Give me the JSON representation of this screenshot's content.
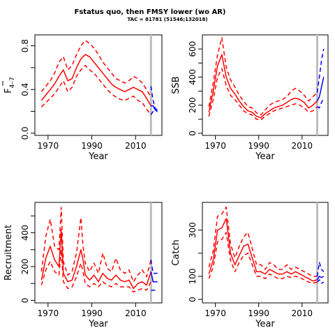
{
  "figure": {
    "title": "Fstatus quo, then FMSY lower (wo AR)",
    "subtitle": "TAC = 81781 (51546;132018)"
  },
  "colors": {
    "historical": "#ff0000",
    "projection": "#0000ff",
    "marker": "#bebebe"
  },
  "chart_data": [
    {
      "id": "fbar",
      "type": "line",
      "xlabel": "Year",
      "ylabel": "F̅ 4–7",
      "ylabel_main": "F",
      "ylabel_sub": "4–7",
      "xlim": [
        1964,
        2022
      ],
      "ylim": [
        -0.02,
        0.9
      ],
      "xticks": [
        1970,
        1990,
        2010
      ],
      "xtick_labels": [
        "1970",
        "1990",
        "2010"
      ],
      "yticks": [
        0.0,
        0.4,
        0.8
      ],
      "ytick_labels": [
        "0.0",
        "0.4",
        "0.8"
      ],
      "ytick_minor": [
        0.2,
        0.6
      ],
      "vline": 2017,
      "historical": {
        "x": [
          1967,
          1969,
          1971,
          1973,
          1975,
          1977,
          1979,
          1981,
          1983,
          1985,
          1987,
          1989,
          1991,
          1993,
          1995,
          1997,
          1999,
          2001,
          2003,
          2005,
          2007,
          2009,
          2011,
          2013,
          2015,
          2017
        ],
        "median": [
          0.3,
          0.35,
          0.4,
          0.45,
          0.52,
          0.58,
          0.48,
          0.5,
          0.6,
          0.68,
          0.72,
          0.7,
          0.65,
          0.6,
          0.55,
          0.5,
          0.45,
          0.42,
          0.4,
          0.38,
          0.4,
          0.42,
          0.4,
          0.38,
          0.32,
          0.25
        ],
        "lower": [
          0.24,
          0.28,
          0.32,
          0.36,
          0.42,
          0.48,
          0.38,
          0.42,
          0.52,
          0.58,
          0.62,
          0.58,
          0.55,
          0.5,
          0.45,
          0.4,
          0.36,
          0.33,
          0.31,
          0.3,
          0.32,
          0.34,
          0.3,
          0.28,
          0.22,
          0.17
        ],
        "upper": [
          0.38,
          0.43,
          0.48,
          0.55,
          0.65,
          0.7,
          0.58,
          0.62,
          0.72,
          0.8,
          0.85,
          0.82,
          0.78,
          0.72,
          0.65,
          0.6,
          0.55,
          0.5,
          0.48,
          0.46,
          0.48,
          0.52,
          0.5,
          0.46,
          0.4,
          0.33
        ]
      },
      "projection": {
        "x": [
          2017,
          2018,
          2019,
          2020
        ],
        "median": [
          0.25,
          0.25,
          0.21,
          0.21
        ],
        "lower": [
          0.17,
          0.2,
          0.2,
          0.2
        ],
        "upper": [
          0.43,
          0.3,
          0.22,
          0.22
        ]
      }
    },
    {
      "id": "ssb",
      "type": "line",
      "xlabel": "Year",
      "ylabel": "SSB",
      "xlim": [
        1964,
        2022
      ],
      "ylim": [
        -15,
        700
      ],
      "xticks": [
        1970,
        1990,
        2010
      ],
      "xtick_labels": [
        "1970",
        "1990",
        "2010"
      ],
      "yticks": [
        0,
        200,
        400,
        600
      ],
      "ytick_labels": [
        "0",
        "200",
        "400",
        "600"
      ],
      "ytick_minor": [
        100,
        300,
        500
      ],
      "vline": 2017,
      "historical": {
        "x": [
          1967,
          1969,
          1971,
          1973,
          1975,
          1977,
          1979,
          1981,
          1983,
          1985,
          1987,
          1989,
          1991,
          1993,
          1995,
          1997,
          1999,
          2001,
          2003,
          2005,
          2007,
          2009,
          2011,
          2013,
          2015,
          2017
        ],
        "median": [
          150,
          300,
          480,
          560,
          400,
          320,
          280,
          230,
          190,
          160,
          150,
          120,
          110,
          140,
          160,
          180,
          190,
          200,
          220,
          240,
          250,
          240,
          220,
          180,
          200,
          230
        ],
        "lower": [
          120,
          240,
          400,
          460,
          340,
          270,
          240,
          200,
          160,
          140,
          130,
          100,
          95,
          120,
          140,
          160,
          170,
          180,
          190,
          200,
          210,
          200,
          180,
          150,
          160,
          190
        ],
        "upper": [
          190,
          360,
          560,
          680,
          470,
          380,
          330,
          270,
          230,
          190,
          180,
          145,
          130,
          165,
          200,
          220,
          230,
          240,
          260,
          300,
          320,
          300,
          270,
          230,
          260,
          290
        ]
      },
      "projection": {
        "x": [
          2017,
          2018,
          2019,
          2020
        ],
        "median": [
          230,
          260,
          330,
          400
        ],
        "lower": [
          190,
          180,
          220,
          250
        ],
        "upper": [
          290,
          400,
          520,
          600
        ]
      }
    },
    {
      "id": "recruitment",
      "type": "line",
      "xlabel": "Year",
      "ylabel": "Recruitment",
      "xlim": [
        1964,
        2022
      ],
      "ylim": [
        -15,
        580
      ],
      "xticks": [
        1970,
        1990,
        2010
      ],
      "xtick_labels": [
        "1970",
        "1990",
        "2010"
      ],
      "yticks": [
        0,
        200,
        400
      ],
      "ytick_labels": [
        "0",
        "200",
        "400"
      ],
      "ytick_minor": [
        100,
        300,
        500
      ],
      "vline": 2017,
      "historical": {
        "x": [
          1967,
          1969,
          1971,
          1973,
          1975,
          1976,
          1977,
          1979,
          1981,
          1983,
          1985,
          1986,
          1987,
          1989,
          1991,
          1993,
          1995,
          1997,
          1999,
          2001,
          2003,
          2005,
          2007,
          2009,
          2011,
          2013,
          2015,
          2017
        ],
        "median": [
          120,
          250,
          320,
          240,
          200,
          420,
          160,
          110,
          120,
          200,
          300,
          240,
          150,
          120,
          150,
          110,
          160,
          130,
          120,
          150,
          120,
          110,
          120,
          70,
          100,
          110,
          90,
          170
        ],
        "lower": [
          90,
          180,
          230,
          170,
          150,
          300,
          110,
          70,
          80,
          140,
          220,
          170,
          100,
          80,
          100,
          80,
          110,
          90,
          80,
          100,
          80,
          80,
          80,
          50,
          60,
          70,
          60,
          110
        ],
        "upper": [
          170,
          380,
          480,
          320,
          300,
          550,
          230,
          150,
          170,
          280,
          490,
          320,
          220,
          170,
          220,
          160,
          280,
          190,
          170,
          250,
          180,
          160,
          180,
          110,
          150,
          180,
          140,
          240
        ]
      },
      "projection": {
        "x": [
          2017,
          2018,
          2019,
          2020
        ],
        "median": [
          170,
          110,
          110,
          110
        ],
        "lower": [
          60,
          60,
          60,
          60
        ],
        "upper": [
          240,
          160,
          160,
          160
        ]
      }
    },
    {
      "id": "catch",
      "type": "line",
      "xlabel": "Year",
      "ylabel": "Catch",
      "xlim": [
        1964,
        2022
      ],
      "ylim": [
        -15,
        420
      ],
      "xticks": [
        1970,
        1990,
        2010
      ],
      "xtick_labels": [
        "1970",
        "1990",
        "2010"
      ],
      "yticks": [
        0,
        100,
        300
      ],
      "ytick_labels": [
        "0",
        "100",
        "300"
      ],
      "ytick_minor": [
        200
      ],
      "vline": 2017,
      "historical": {
        "x": [
          1967,
          1969,
          1971,
          1973,
          1975,
          1977,
          1979,
          1981,
          1983,
          1985,
          1987,
          1989,
          1991,
          1993,
          1995,
          1997,
          1999,
          2001,
          2003,
          2005,
          2007,
          2009,
          2011,
          2013,
          2015,
          2017
        ],
        "median": [
          110,
          170,
          300,
          310,
          350,
          200,
          150,
          190,
          230,
          240,
          180,
          120,
          120,
          110,
          130,
          120,
          110,
          110,
          120,
          110,
          120,
          110,
          100,
          90,
          80,
          85
        ],
        "lower": [
          90,
          140,
          250,
          260,
          290,
          170,
          120,
          160,
          190,
          200,
          150,
          100,
          100,
          90,
          110,
          100,
          90,
          90,
          100,
          95,
          100,
          95,
          85,
          75,
          70,
          75
        ],
        "upper": [
          140,
          210,
          360,
          370,
          400,
          240,
          180,
          230,
          270,
          290,
          220,
          150,
          150,
          130,
          160,
          150,
          130,
          130,
          150,
          130,
          140,
          130,
          120,
          110,
          100,
          100
        ]
      },
      "projection": {
        "x": [
          2017,
          2018,
          2019,
          2020
        ],
        "median": [
          85,
          100,
          95,
          100
        ],
        "lower": [
          75,
          85,
          70,
          75
        ],
        "upper": [
          100,
          160,
          130,
          120
        ]
      }
    }
  ]
}
